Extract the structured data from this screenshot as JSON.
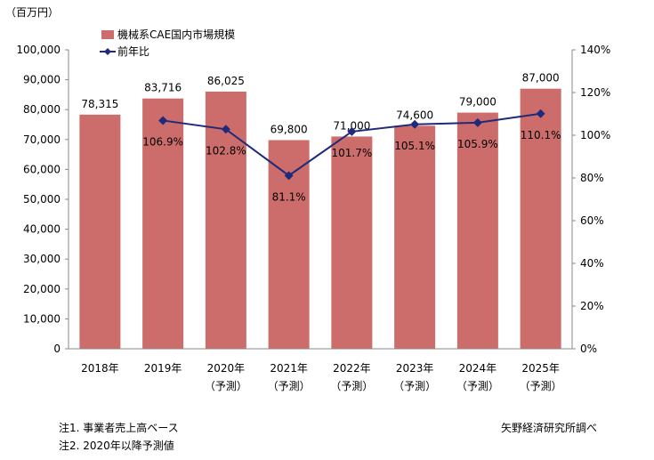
{
  "chart_data": {
    "type": "bar",
    "y_unit_label": "（百万円）",
    "categories": [
      "2018年",
      "2019年",
      "2020年",
      "2021年",
      "2022年",
      "2023年",
      "2024年",
      "2025年"
    ],
    "category_sublabels": [
      "",
      "",
      "（予測）",
      "（予測）",
      "（予測）",
      "（予測）",
      "（予測）",
      "（予測）"
    ],
    "series": [
      {
        "name": "機械系CAE国内市場規模",
        "type": "bar",
        "axis": "left",
        "color": "#cc6d6b",
        "values": [
          78315,
          83716,
          86025,
          69800,
          71000,
          74600,
          79000,
          87000
        ],
        "labels": [
          "78,315",
          "83,716",
          "86,025",
          "69,800",
          "71,000",
          "74,600",
          "79,000",
          "87,000"
        ]
      },
      {
        "name": "前年比",
        "type": "line",
        "axis": "right",
        "marker": "diamond",
        "color": "#1f2a7a",
        "values": [
          null,
          106.9,
          102.8,
          81.1,
          101.7,
          105.1,
          105.9,
          110.1
        ],
        "labels": [
          "",
          "106.9%",
          "102.8%",
          "81.1%",
          "101.7%",
          "105.1%",
          "105.9%",
          "110.1%"
        ]
      }
    ],
    "y_left": {
      "min": 0,
      "max": 100000,
      "ticks": [
        0,
        10000,
        20000,
        30000,
        40000,
        50000,
        60000,
        70000,
        80000,
        90000,
        100000
      ],
      "tick_labels": [
        "0",
        "10,000",
        "20,000",
        "30,000",
        "40,000",
        "50,000",
        "60,000",
        "70,000",
        "80,000",
        "90,000",
        "100,000"
      ]
    },
    "y_right": {
      "min": 0,
      "max": 140,
      "ticks": [
        0,
        20,
        40,
        60,
        80,
        100,
        120,
        140
      ],
      "tick_labels": [
        "0%",
        "20%",
        "40%",
        "60%",
        "80%",
        "100%",
        "120%",
        "140%"
      ]
    },
    "grid": false,
    "legend_position": "top-left"
  },
  "notes": {
    "note1": "注1. 事業者売上高ベース",
    "note2": "注2. 2020年以降予測値",
    "source": "矢野経済研究所調べ"
  }
}
